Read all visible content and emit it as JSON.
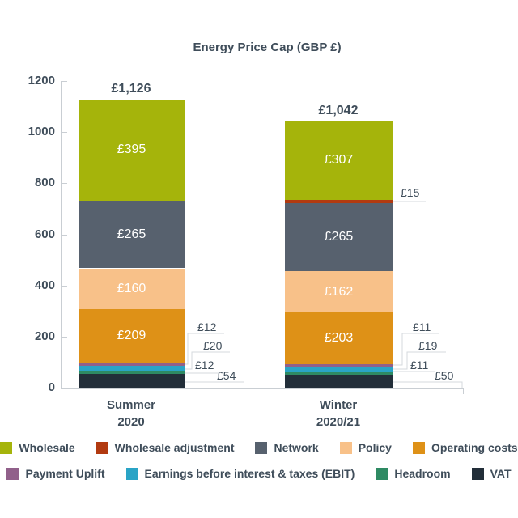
{
  "title": "Energy Price Cap (GBP £)",
  "colors": {
    "text": "#3f4d5a",
    "axis": "#c9ced3",
    "connector": "#d4d9dd",
    "background": "#ffffff",
    "bar_value_text": "#ffffff"
  },
  "chart_data": {
    "type": "bar",
    "stacked": true,
    "title": "Energy Price Cap (GBP £)",
    "categories": [
      {
        "line1": "Summer",
        "line2": "2020"
      },
      {
        "line1": "Winter",
        "line2": "2020/21"
      }
    ],
    "series": [
      {
        "name": "Wholesale",
        "color": "#a5b40b",
        "values": [
          395,
          307
        ]
      },
      {
        "name": "Wholesale adjustment",
        "color": "#b23a10",
        "values": [
          0,
          15
        ]
      },
      {
        "name": "Network",
        "color": "#57616e",
        "values": [
          265,
          265
        ]
      },
      {
        "name": "Policy",
        "color": "#f8c189",
        "values": [
          160,
          162
        ]
      },
      {
        "name": "Operating costs",
        "color": "#de9117",
        "values": [
          209,
          203
        ]
      },
      {
        "name": "Payment Uplift",
        "color": "#91608a",
        "values": [
          12,
          11
        ]
      },
      {
        "name": "Earnings before interest & taxes (EBIT)",
        "color": "#2aa4c6",
        "values": [
          20,
          19
        ]
      },
      {
        "name": "Headroom",
        "color": "#2e8a63",
        "values": [
          12,
          11
        ]
      },
      {
        "name": "VAT",
        "color": "#222e39",
        "values": [
          54,
          50
        ]
      }
    ],
    "segment_labels": [
      [
        "£395",
        null,
        "£265",
        "£160",
        "£209",
        "£12",
        "£20",
        "£12",
        "£54"
      ],
      [
        "£307",
        "£15",
        "£265",
        "£162",
        "£203",
        "£11",
        "£19",
        "£11",
        "£50"
      ]
    ],
    "totals": [
      "£1,126",
      "£1,042"
    ],
    "y_axis": {
      "min": 0,
      "max": 1200,
      "tick_interval": 200,
      "ticks": [
        0,
        200,
        400,
        600,
        800,
        1000,
        1200
      ]
    },
    "legend_position": "bottom",
    "grid": false
  }
}
